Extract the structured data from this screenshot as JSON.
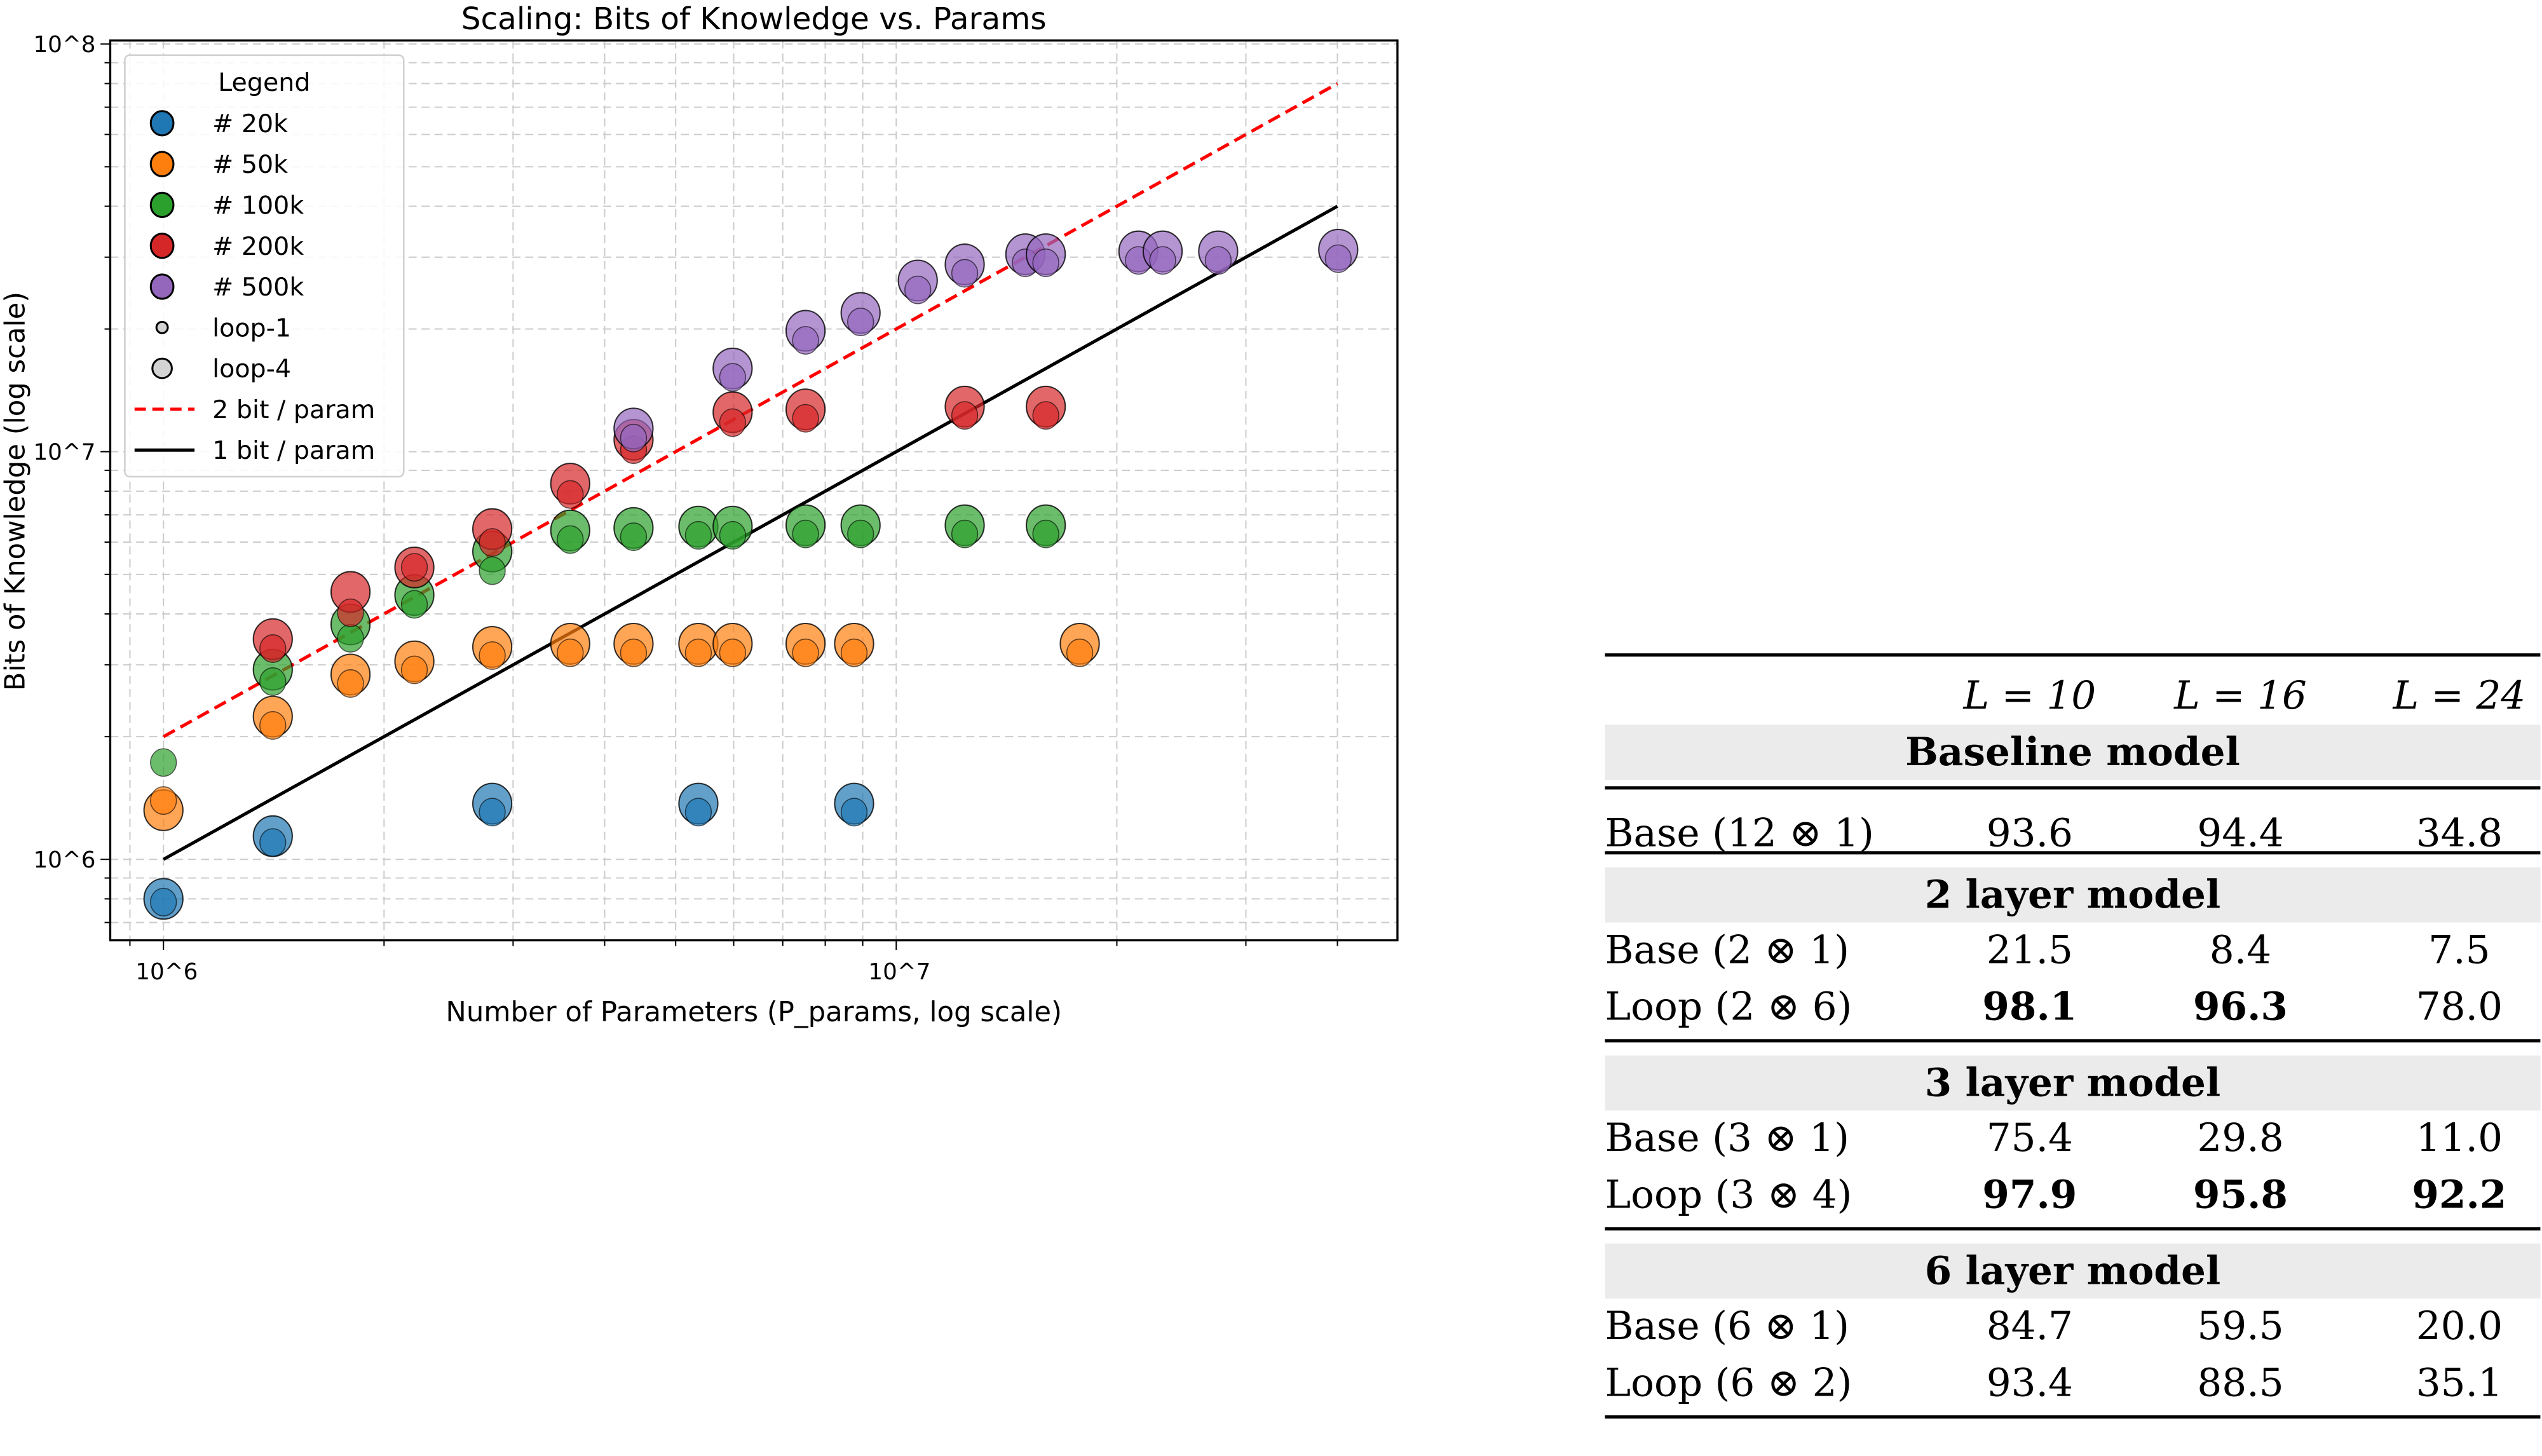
{
  "chart_data": {
    "type": "scatter",
    "title": "Scaling: Bits of Knowledge vs. Params",
    "xlabel": "Number of Parameters (P_params, log scale)",
    "ylabel": "Bits of Knowledge (log scale)",
    "xscale": "log",
    "yscale": "log",
    "xlim": [
      846000,
      48300000
    ],
    "ylim": [
      633000,
      102000000
    ],
    "x_ticks": [
      {
        "value": 1000000,
        "label": "10^6"
      },
      {
        "value": 10000000,
        "label": "10^7"
      }
    ],
    "y_ticks": [
      {
        "value": 1000000,
        "label": "10^6"
      },
      {
        "value": 10000000,
        "label": "10^7"
      },
      {
        "value": 100000000,
        "label": "10^8"
      }
    ],
    "grid": true,
    "legend": {
      "title": "Legend",
      "placement": "top-left"
    },
    "point_format": "[x, y_loop4, y_loop1]",
    "series": [
      {
        "name": "# 20k",
        "color": "#1f77b4",
        "points": [
          [
            1000000.0,
            800000.0,
            800000.0
          ],
          [
            1410000.0,
            1140000.0,
            1120000.0
          ],
          [
            2810000.0,
            1370000.0,
            1330000.0
          ],
          [
            5370000.0,
            1370000.0,
            1330000.0
          ],
          [
            8760000.0,
            1370000.0,
            1330000.0
          ]
        ]
      },
      {
        "name": "# 50k",
        "color": "#ff7f0e",
        "points": [
          [
            1000000.0,
            1320000.0,
            1420000.0
          ],
          [
            1410000.0,
            2240000.0,
            2170000.0
          ],
          [
            1800000.0,
            2840000.0,
            2750000.0
          ],
          [
            2200000.0,
            3060000.0,
            2970000.0
          ],
          [
            2810000.0,
            3320000.0,
            3220000.0
          ],
          [
            3590000.0,
            3380000.0,
            3270000.0
          ],
          [
            4380000.0,
            3380000.0,
            3270000.0
          ],
          [
            5370000.0,
            3380000.0,
            3270000.0
          ],
          [
            5980000.0,
            3380000.0,
            3270000.0
          ],
          [
            7520000.0,
            3380000.0,
            3270000.0
          ],
          [
            8760000.0,
            3380000.0,
            3270000.0
          ],
          [
            17800000.0,
            3380000.0,
            3270000.0
          ]
        ]
      },
      {
        "name": "# 100k",
        "color": "#2ca02c",
        "points": [
          [
            1000000.0,
            null,
            1760000.0
          ],
          [
            1410000.0,
            2920000.0,
            2780000.0
          ],
          [
            1800000.0,
            3770000.0,
            3550000.0
          ],
          [
            2200000.0,
            4450000.0,
            4300000.0
          ],
          [
            2810000.0,
            5690000.0,
            5200000.0
          ],
          [
            3590000.0,
            6410000.0,
            6200000.0
          ],
          [
            4380000.0,
            6500000.0,
            6300000.0
          ],
          [
            5370000.0,
            6550000.0,
            6350000.0
          ],
          [
            5980000.0,
            6550000.0,
            6350000.0
          ],
          [
            7520000.0,
            6600000.0,
            6400000.0
          ],
          [
            8940000.0,
            6600000.0,
            6400000.0
          ],
          [
            12400000.0,
            6600000.0,
            6400000.0
          ],
          [
            16000000.0,
            6600000.0,
            6400000.0
          ]
        ]
      },
      {
        "name": "# 200k",
        "color": "#d62728",
        "points": [
          [
            1410000.0,
            3470000.0,
            3350000.0
          ],
          [
            1800000.0,
            4530000.0,
            4100000.0
          ],
          [
            2200000.0,
            5200000.0,
            5300000.0
          ],
          [
            2810000.0,
            6460000.0,
            6100000.0
          ],
          [
            3590000.0,
            8350000.0,
            8000000.0
          ],
          [
            4380000.0,
            10700000.0,
            10300000.0
          ],
          [
            5980000.0,
            12500000.0,
            12000000.0
          ],
          [
            7520000.0,
            12700000.0,
            12300000.0
          ],
          [
            12400000.0,
            12900000.0,
            12500000.0
          ],
          [
            16000000.0,
            12900000.0,
            12500000.0
          ]
        ]
      },
      {
        "name": "# 500k",
        "color": "#9467bd",
        "points": [
          [
            4380000.0,
            11400000.0,
            11000000.0
          ],
          [
            5980000.0,
            16000000.0,
            15500000.0
          ],
          [
            7520000.0,
            19800000.0,
            19100000.0
          ],
          [
            8940000.0,
            21900000.0,
            21200000.0
          ],
          [
            10700000.0,
            26300000.0,
            25400000.0
          ],
          [
            12400000.0,
            28800000.0,
            27900000.0
          ],
          [
            15000000.0,
            30500000.0,
            29600000.0
          ],
          [
            16000000.0,
            30500000.0,
            29600000.0
          ],
          [
            21400000.0,
            31000000.0,
            30000000.0
          ],
          [
            23100000.0,
            31000000.0,
            30000000.0
          ],
          [
            27500000.0,
            31000000.0,
            30000000.0
          ],
          [
            40100000.0,
            31300000.0,
            30300000.0
          ]
        ]
      }
    ],
    "size_legend": [
      {
        "name": "loop-1"
      },
      {
        "name": "loop-4"
      }
    ],
    "lines": [
      {
        "name": "2 bit / param",
        "color": "#ff0000",
        "style": "dashed",
        "bits_per_param": 2,
        "x_range": [
          1000000,
          40000000
        ]
      },
      {
        "name": "1 bit / param",
        "color": "#000000",
        "style": "solid",
        "bits_per_param": 1,
        "x_range": [
          1000000,
          40000000
        ]
      }
    ]
  },
  "table": {
    "headers": [
      "L = 10",
      "L = 16",
      "L = 24"
    ],
    "sections": [
      {
        "title": "Baseline model",
        "rows": [
          {
            "label": "Base (12 ⊗ 1)",
            "values": [
              "93.6",
              "94.4",
              "34.8"
            ],
            "bold": [
              false,
              false,
              false
            ]
          }
        ]
      },
      {
        "title": "2 layer model",
        "rows": [
          {
            "label": "Base (2 ⊗ 1)",
            "values": [
              "21.5",
              "8.4",
              "7.5"
            ],
            "bold": [
              false,
              false,
              false
            ]
          },
          {
            "label": "Loop (2 ⊗ 6)",
            "values": [
              "98.1",
              "96.3",
              "78.0"
            ],
            "bold": [
              true,
              true,
              false
            ]
          }
        ]
      },
      {
        "title": "3 layer model",
        "rows": [
          {
            "label": "Base (3 ⊗ 1)",
            "values": [
              "75.4",
              "29.8",
              "11.0"
            ],
            "bold": [
              false,
              false,
              false
            ]
          },
          {
            "label": "Loop (3 ⊗ 4)",
            "values": [
              "97.9",
              "95.8",
              "92.2"
            ],
            "bold": [
              true,
              true,
              true
            ]
          }
        ]
      },
      {
        "title": "6 layer model",
        "rows": [
          {
            "label": "Base (6 ⊗ 1)",
            "values": [
              "84.7",
              "59.5",
              "20.0"
            ],
            "bold": [
              false,
              false,
              false
            ]
          },
          {
            "label": "Loop (6 ⊗ 2)",
            "values": [
              "93.4",
              "88.5",
              "35.1"
            ],
            "bold": [
              false,
              false,
              false
            ]
          }
        ]
      }
    ]
  }
}
